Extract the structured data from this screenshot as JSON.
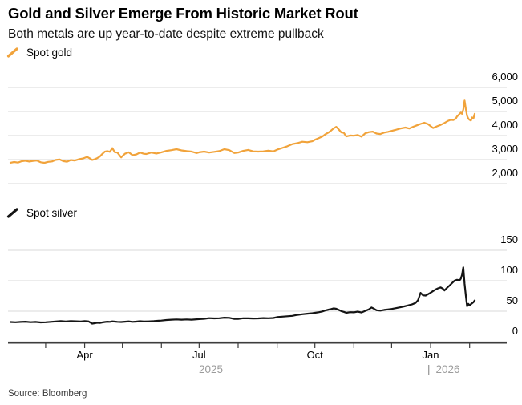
{
  "header": {
    "title": "Gold and Silver Emerge From Historic Market Rout",
    "subtitle": "Both metals are up year-to-date despite extreme pullback"
  },
  "source": "Source: Bloomberg",
  "x_axis": {
    "unit": "days since 2025-02-01",
    "tick_days": [
      28,
      59,
      89,
      120,
      150,
      181,
      212,
      242,
      273,
      303,
      334,
      365
    ],
    "labeled_ticks": [
      {
        "day": 59,
        "label": "Apr"
      },
      {
        "day": 150,
        "label": "Jul"
      },
      {
        "day": 242,
        "label": "Oct"
      },
      {
        "day": 334,
        "label": "Jan"
      }
    ],
    "year_labels": [
      {
        "label": "2025"
      },
      {
        "pipe": "|",
        "label": "2026"
      }
    ]
  },
  "chart_data": [
    {
      "type": "line",
      "legend": "Spot gold",
      "color": "#F1A33B",
      "grid": "horizontal",
      "ticks_position": "right",
      "x_range": [
        0,
        369
      ],
      "ylim": [
        2000,
        6000
      ],
      "yticks": [
        {
          "v": 6000,
          "label": "6,000"
        },
        {
          "v": 5000,
          "label": "5,000"
        },
        {
          "v": 4000,
          "label": "4,000"
        },
        {
          "v": 3000,
          "label": "3,000"
        },
        {
          "v": 2000,
          "label": "2,000"
        }
      ],
      "points": [
        [
          0,
          2870
        ],
        [
          3,
          2900
        ],
        [
          6,
          2878
        ],
        [
          9,
          2932
        ],
        [
          12,
          2952
        ],
        [
          15,
          2920
        ],
        [
          18,
          2945
        ],
        [
          21,
          2962
        ],
        [
          24,
          2890
        ],
        [
          27,
          2868
        ],
        [
          30,
          2905
        ],
        [
          33,
          2925
        ],
        [
          36,
          2985
        ],
        [
          39,
          3005
        ],
        [
          42,
          2935
        ],
        [
          45,
          2915
        ],
        [
          48,
          2982
        ],
        [
          51,
          2960
        ],
        [
          55,
          3022
        ],
        [
          58,
          3052
        ],
        [
          61,
          3112
        ],
        [
          63,
          3055
        ],
        [
          65,
          2988
        ],
        [
          67,
          3012
        ],
        [
          69,
          3062
        ],
        [
          71,
          3122
        ],
        [
          73,
          3232
        ],
        [
          75,
          3330
        ],
        [
          77,
          3352
        ],
        [
          79,
          3322
        ],
        [
          81,
          3478
        ],
        [
          83,
          3305
        ],
        [
          85,
          3292
        ],
        [
          88,
          3092
        ],
        [
          91,
          3242
        ],
        [
          94,
          3302
        ],
        [
          97,
          3185
        ],
        [
          100,
          3212
        ],
        [
          103,
          3292
        ],
        [
          106,
          3245
        ],
        [
          108,
          3232
        ],
        [
          112,
          3292
        ],
        [
          116,
          3252
        ],
        [
          120,
          3302
        ],
        [
          124,
          3362
        ],
        [
          128,
          3392
        ],
        [
          132,
          3432
        ],
        [
          136,
          3382
        ],
        [
          140,
          3352
        ],
        [
          144,
          3332
        ],
        [
          148,
          3272
        ],
        [
          150,
          3302
        ],
        [
          154,
          3332
        ],
        [
          158,
          3292
        ],
        [
          162,
          3322
        ],
        [
          166,
          3352
        ],
        [
          170,
          3432
        ],
        [
          174,
          3392
        ],
        [
          178,
          3272
        ],
        [
          181,
          3292
        ],
        [
          185,
          3362
        ],
        [
          189,
          3402
        ],
        [
          193,
          3342
        ],
        [
          197,
          3332
        ],
        [
          201,
          3342
        ],
        [
          205,
          3372
        ],
        [
          209,
          3345
        ],
        [
          212,
          3412
        ],
        [
          216,
          3482
        ],
        [
          220,
          3552
        ],
        [
          224,
          3642
        ],
        [
          228,
          3682
        ],
        [
          232,
          3742
        ],
        [
          236,
          3722
        ],
        [
          240,
          3762
        ],
        [
          242,
          3822
        ],
        [
          245,
          3892
        ],
        [
          248,
          3962
        ],
        [
          250,
          4042
        ],
        [
          253,
          4132
        ],
        [
          255,
          4212
        ],
        [
          257,
          4302
        ],
        [
          259,
          4362
        ],
        [
          261,
          4252
        ],
        [
          263,
          4132
        ],
        [
          265,
          4112
        ],
        [
          267,
          3962
        ],
        [
          270,
          4002
        ],
        [
          273,
          3992
        ],
        [
          276,
          4022
        ],
        [
          279,
          3952
        ],
        [
          282,
          4092
        ],
        [
          285,
          4142
        ],
        [
          288,
          4162
        ],
        [
          291,
          4082
        ],
        [
          294,
          4062
        ],
        [
          297,
          4122
        ],
        [
          300,
          4152
        ],
        [
          303,
          4192
        ],
        [
          306,
          4232
        ],
        [
          310,
          4292
        ],
        [
          314,
          4332
        ],
        [
          317,
          4292
        ],
        [
          320,
          4362
        ],
        [
          323,
          4422
        ],
        [
          326,
          4482
        ],
        [
          329,
          4532
        ],
        [
          332,
          4472
        ],
        [
          334,
          4392
        ],
        [
          336,
          4312
        ],
        [
          339,
          4382
        ],
        [
          342,
          4442
        ],
        [
          345,
          4522
        ],
        [
          348,
          4612
        ],
        [
          350,
          4652
        ],
        [
          352,
          4642
        ],
        [
          354,
          4702
        ],
        [
          355,
          4792
        ],
        [
          356,
          4842
        ],
        [
          357,
          4902
        ],
        [
          358,
          4952
        ],
        [
          359,
          4902
        ],
        [
          360,
          5082
        ],
        [
          361,
          5452
        ],
        [
          362,
          5102
        ],
        [
          363,
          4822
        ],
        [
          364,
          4702
        ],
        [
          365,
          4652
        ],
        [
          366,
          4622
        ],
        [
          367,
          4752
        ],
        [
          368,
          4702
        ],
        [
          369,
          4902
        ]
      ]
    },
    {
      "type": "line",
      "legend": "Spot silver",
      "color": "#141414",
      "grid": "horizontal",
      "ticks_position": "right",
      "x_range": [
        0,
        369
      ],
      "ylim": [
        0,
        150
      ],
      "yticks": [
        {
          "v": 150,
          "label": "150"
        },
        {
          "v": 100,
          "label": "100"
        },
        {
          "v": 50,
          "label": "50"
        },
        {
          "v": 0,
          "label": "0"
        }
      ],
      "points": [
        [
          0,
          32.2
        ],
        [
          4,
          31.8
        ],
        [
          8,
          32.4
        ],
        [
          12,
          32.8
        ],
        [
          16,
          32.0
        ],
        [
          20,
          32.4
        ],
        [
          24,
          31.6
        ],
        [
          28,
          31.9
        ],
        [
          32,
          32.5
        ],
        [
          36,
          33.1
        ],
        [
          40,
          33.7
        ],
        [
          44,
          33.2
        ],
        [
          48,
          33.8
        ],
        [
          52,
          33.4
        ],
        [
          56,
          33.1
        ],
        [
          59,
          33.8
        ],
        [
          62,
          33.3
        ],
        [
          65,
          29.6
        ],
        [
          67,
          30.3
        ],
        [
          69,
          31.1
        ],
        [
          71,
          30.7
        ],
        [
          73,
          31.6
        ],
        [
          75,
          32.3
        ],
        [
          77,
          32.7
        ],
        [
          79,
          32.5
        ],
        [
          81,
          33.3
        ],
        [
          83,
          32.9
        ],
        [
          85,
          32.5
        ],
        [
          88,
          32.3
        ],
        [
          91,
          32.7
        ],
        [
          94,
          33.3
        ],
        [
          97,
          32.5
        ],
        [
          100,
          32.9
        ],
        [
          103,
          33.5
        ],
        [
          106,
          33.0
        ],
        [
          110,
          33.3
        ],
        [
          114,
          33.7
        ],
        [
          118,
          34.3
        ],
        [
          120,
          34.6
        ],
        [
          124,
          35.5
        ],
        [
          128,
          36.1
        ],
        [
          132,
          36.5
        ],
        [
          136,
          36.0
        ],
        [
          140,
          36.4
        ],
        [
          144,
          36.1
        ],
        [
          148,
          36.7
        ],
        [
          150,
          37.0
        ],
        [
          154,
          37.5
        ],
        [
          158,
          38.5
        ],
        [
          162,
          38.1
        ],
        [
          166,
          38.4
        ],
        [
          170,
          39.3
        ],
        [
          174,
          39.1
        ],
        [
          178,
          37.2
        ],
        [
          181,
          37.4
        ],
        [
          185,
          38.4
        ],
        [
          189,
          38.3
        ],
        [
          193,
          38.0
        ],
        [
          197,
          38.2
        ],
        [
          201,
          38.7
        ],
        [
          205,
          38.4
        ],
        [
          209,
          38.8
        ],
        [
          212,
          40.3
        ],
        [
          216,
          41.1
        ],
        [
          220,
          41.7
        ],
        [
          224,
          42.4
        ],
        [
          228,
          43.9
        ],
        [
          232,
          45.0
        ],
        [
          236,
          45.9
        ],
        [
          240,
          46.7
        ],
        [
          242,
          47.4
        ],
        [
          245,
          48.3
        ],
        [
          248,
          49.6
        ],
        [
          250,
          51.1
        ],
        [
          253,
          52.6
        ],
        [
          255,
          53.6
        ],
        [
          257,
          54.6
        ],
        [
          259,
          53.9
        ],
        [
          261,
          52.1
        ],
        [
          263,
          50.1
        ],
        [
          265,
          49.0
        ],
        [
          267,
          47.4
        ],
        [
          270,
          48.4
        ],
        [
          273,
          48.1
        ],
        [
          276,
          49.4
        ],
        [
          279,
          47.9
        ],
        [
          282,
          50.5
        ],
        [
          285,
          53.1
        ],
        [
          287,
          56.1
        ],
        [
          289,
          54.1
        ],
        [
          291,
          51.6
        ],
        [
          294,
          50.9
        ],
        [
          297,
          52.1
        ],
        [
          300,
          52.9
        ],
        [
          303,
          53.7
        ],
        [
          306,
          54.9
        ],
        [
          310,
          56.5
        ],
        [
          313,
          57.9
        ],
        [
          316,
          59.5
        ],
        [
          319,
          61.1
        ],
        [
          322,
          63.6
        ],
        [
          324,
          68.1
        ],
        [
          326,
          80.1
        ],
        [
          328,
          76.1
        ],
        [
          330,
          75.6
        ],
        [
          333,
          79.1
        ],
        [
          336,
          83.1
        ],
        [
          338,
          85.6
        ],
        [
          340,
          87.6
        ],
        [
          342,
          89.1
        ],
        [
          344,
          86.6
        ],
        [
          345,
          84.1
        ],
        [
          347,
          88.1
        ],
        [
          349,
          92.1
        ],
        [
          351,
          96.1
        ],
        [
          353,
          100.1
        ],
        [
          355,
          101.6
        ],
        [
          357,
          100.6
        ],
        [
          358,
          103.1
        ],
        [
          359,
          110.1
        ],
        [
          360,
          122.1
        ],
        [
          361,
          95.1
        ],
        [
          362,
          75.1
        ],
        [
          363,
          58.1
        ],
        [
          364,
          62.1
        ],
        [
          365,
          59.6
        ],
        [
          366,
          61.6
        ],
        [
          368,
          64.6
        ],
        [
          369,
          67.6
        ]
      ]
    }
  ]
}
